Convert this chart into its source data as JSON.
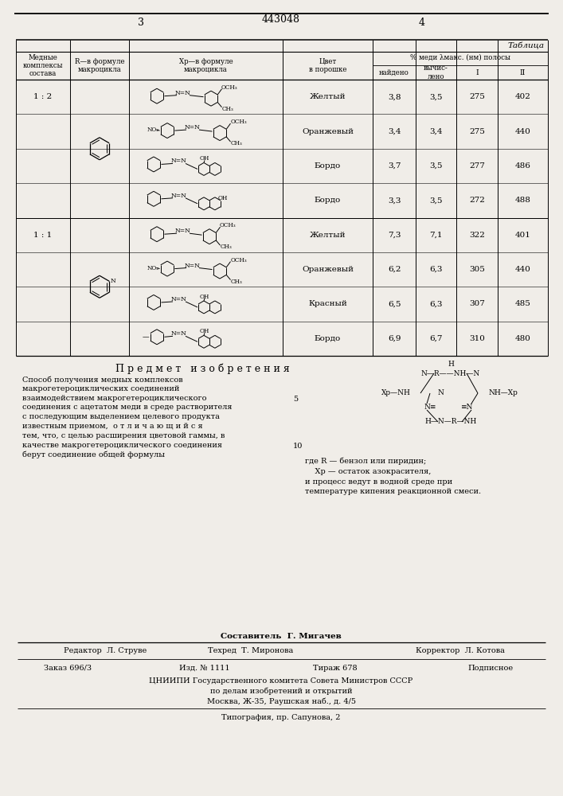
{
  "title": "443048",
  "page_left": "3",
  "page_right": "4",
  "table_label": "Таблица",
  "rows": [
    {
      "ratio": "1 : 2",
      "color": "Желтый",
      "found": "3,8",
      "calc": "3,5",
      "I": "275",
      "II": "402",
      "xp": 1
    },
    {
      "ratio": "",
      "color": "Оранжевый",
      "found": "3,4",
      "calc": "3,4",
      "I": "275",
      "II": "440",
      "xp": 2
    },
    {
      "ratio": "",
      "color": "Бордо",
      "found": "3,7",
      "calc": "3,5",
      "I": "277",
      "II": "486",
      "xp": 3
    },
    {
      "ratio": "",
      "color": "Бордо",
      "found": "3,3",
      "calc": "3,5",
      "I": "272",
      "II": "488",
      "xp": 4
    },
    {
      "ratio": "1 : 1",
      "color": "Желтый",
      "found": "7,3",
      "calc": "7,1",
      "I": "322",
      "II": "401",
      "xp": 5
    },
    {
      "ratio": "",
      "color": "Оранжевый",
      "found": "6,2",
      "calc": "6,3",
      "I": "305",
      "II": "440",
      "xp": 6
    },
    {
      "ratio": "",
      "color": "Красный",
      "found": "6,5",
      "calc": "6,3",
      "I": "307",
      "II": "485",
      "xp": 7
    },
    {
      "ratio": "",
      "color": "Бордо",
      "found": "6,9",
      "calc": "6,7",
      "I": "310",
      "II": "480",
      "xp": 8
    }
  ],
  "predmet_title": "П р е д м е т   и з о б р е т е н и я",
  "text_left": "Способ получения медных комплексов макрогетероциклических соединений взаимодействием макрогетероциклического соединения с ацетатом меди в среде растворителя с последующим выделением целевого продукта известным приемом,  о т л и ч а ю щ и й с я  тем, что, с целью расширения цветовой гаммы, в качестве макрогетероциклического соединения берут соединение общей формулы",
  "text_right1": "где R — бензол или пиридин;",
  "text_right2": "    Хр — остаток азокрасителя,",
  "text_right3": "и процесс ведут в водной среде при температуре кипения реакционной смеси.",
  "footer_comp": "Составитель  Г. Мигачев",
  "footer_ed": "Редактор  Л. Струве",
  "footer_tech": "Техред  Т. Миронова",
  "footer_corr": "Корректор  Л. Котова",
  "footer_order": "Заказ 696/3",
  "footer_pub": "Изд. № 1111",
  "footer_circ": "Тираж 678",
  "footer_sign": "Подписное",
  "footer_org": "ЦНИИПИ Государственного комитета Совета Министров СССР",
  "footer_org2": "по делам изобретений и открытий",
  "footer_addr": "Москва, Ж-35, Раушская наб., д. 4/5",
  "footer_print": "Типография, пр. Сапунова, 2",
  "bg_color": "#f0ede8"
}
